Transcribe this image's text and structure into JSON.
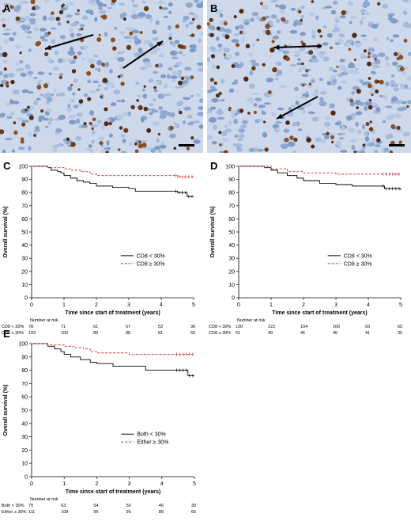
{
  "panels": {
    "A": {
      "letter": "A"
    },
    "B": {
      "letter": "B"
    }
  },
  "colors": {
    "solid_series": "#000000",
    "dashed_series": "#d62728",
    "stain_brown": "#6b3a1c",
    "tissue_blue": "#9fb7da"
  },
  "chart_data": [
    {
      "id": "C",
      "type": "line",
      "letter": "C",
      "ylabel": "Overall survival (%)",
      "xlabel": "Time since start of treatment (years)",
      "xlim": [
        0,
        5
      ],
      "ylim": [
        0,
        100
      ],
      "xticks": [
        0,
        1,
        2,
        3,
        4,
        5
      ],
      "yticks": [
        0,
        10,
        20,
        30,
        40,
        50,
        60,
        70,
        80,
        90,
        100
      ],
      "legend_position": "center-right",
      "series": [
        {
          "name": "CD8 < 30%",
          "style": "solid",
          "color": "#000000",
          "x": [
            0,
            0.5,
            0.6,
            0.8,
            0.9,
            1.0,
            1.2,
            1.4,
            1.6,
            1.8,
            2.0,
            2.5,
            3.0,
            3.2,
            3.5,
            4.0,
            4.5,
            4.8,
            5.0
          ],
          "y": [
            100,
            99,
            97,
            96,
            95,
            93,
            91,
            89,
            88,
            87,
            85,
            84,
            83,
            81,
            81,
            81,
            80,
            77,
            77
          ]
        },
        {
          "name": "CD8 ≥ 30%",
          "style": "dashed",
          "color": "#d62728",
          "x": [
            0,
            0.5,
            1.0,
            1.2,
            1.5,
            1.8,
            2.0,
            2.5,
            3.0,
            3.5,
            4.0,
            4.5,
            5.0
          ],
          "y": [
            100,
            99,
            98,
            97,
            96,
            94,
            93,
            93,
            93,
            93,
            93,
            92,
            92
          ]
        }
      ],
      "risk_table": {
        "title": "Number at risk",
        "rows": [
          {
            "label": "CD8 < 30%",
            "values": [
              "78",
              "71",
              "61",
              "57",
              "53",
              "36"
            ]
          },
          {
            "label": "CD8 ≥ 30%",
            "values": [
              "103",
              "100",
              "89",
              "88",
              "81",
              "59"
            ]
          }
        ]
      }
    },
    {
      "id": "D",
      "type": "line",
      "letter": "D",
      "ylabel": "Overall survival (%)",
      "xlabel": "Time since start of treatment (years)",
      "xlim": [
        0,
        5
      ],
      "ylim": [
        0,
        100
      ],
      "xticks": [
        0,
        1,
        2,
        3,
        4,
        5
      ],
      "yticks": [
        0,
        10,
        20,
        30,
        40,
        50,
        60,
        70,
        80,
        90,
        100
      ],
      "legend_position": "center-right",
      "series": [
        {
          "name": "CD8 < 30%",
          "style": "solid",
          "color": "#000000",
          "x": [
            0,
            0.8,
            1.0,
            1.2,
            1.5,
            1.8,
            2.0,
            2.5,
            3.0,
            3.5,
            4.0,
            4.5,
            5.0
          ],
          "y": [
            100,
            99,
            97,
            95,
            93,
            91,
            89,
            87,
            86,
            85,
            85,
            83,
            82
          ]
        },
        {
          "name": "CD8 ≥ 30%",
          "style": "dashed",
          "color": "#d62728",
          "x": [
            0,
            1.0,
            1.5,
            2.0,
            3.0,
            4.0,
            5.0
          ],
          "y": [
            100,
            98,
            96,
            95,
            94,
            94,
            94
          ]
        }
      ],
      "risk_table": {
        "title": "Number at risk",
        "rows": [
          {
            "label": "CD8 < 30%",
            "values": [
              "130",
              "122",
              "104",
              "100",
              "93",
              "65"
            ]
          },
          {
            "label": "CD8 ≥ 30%",
            "values": [
              "51",
              "49",
              "46",
              "45",
              "41",
              "30"
            ]
          }
        ]
      }
    },
    {
      "id": "E",
      "type": "line",
      "letter": "E",
      "ylabel": "Overall survival (%)",
      "xlabel": "Time since start of treatment (years)",
      "xlim": [
        0,
        5
      ],
      "ylim": [
        0,
        100
      ],
      "xticks": [
        0,
        1,
        2,
        3,
        4,
        5
      ],
      "yticks": [
        0,
        10,
        20,
        30,
        40,
        50,
        60,
        70,
        80,
        90,
        100
      ],
      "legend_position": "center-right",
      "series": [
        {
          "name": "Both < 30%",
          "style": "solid",
          "color": "#000000",
          "x": [
            0,
            0.5,
            0.7,
            0.9,
            1.0,
            1.2,
            1.5,
            1.8,
            2.0,
            2.5,
            3.0,
            3.5,
            4.0,
            4.5,
            4.8,
            5.0
          ],
          "y": [
            100,
            98,
            96,
            94,
            92,
            90,
            88,
            86,
            85,
            83,
            83,
            80,
            80,
            80,
            76,
            76
          ]
        },
        {
          "name": "Either ≥ 30%",
          "style": "dashed",
          "color": "#d62728",
          "x": [
            0,
            0.5,
            1.0,
            1.3,
            1.6,
            1.8,
            2.0,
            2.5,
            3.0,
            3.5,
            4.0,
            4.5,
            5.0
          ],
          "y": [
            100,
            99,
            98,
            97,
            96,
            94,
            93,
            93,
            92,
            92,
            92,
            92,
            92
          ]
        }
      ],
      "risk_table": {
        "title": "Number at risk",
        "rows": [
          {
            "label": "Both < 30%",
            "values": [
              "70",
              "63",
              "54",
              "50",
              "46",
              "30"
            ]
          },
          {
            "label": "Either ≥ 30%",
            "values": [
              "111",
              "108",
              "96",
              "95",
              "88",
              "65"
            ]
          }
        ]
      }
    }
  ]
}
